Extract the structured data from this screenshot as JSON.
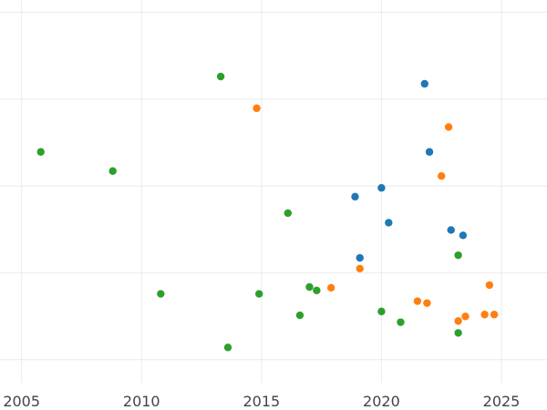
{
  "chart_data": {
    "type": "scatter",
    "title": "",
    "xlabel": "",
    "ylabel": "",
    "xlim": [
      2004.1,
      2026.9
    ],
    "ylim": [
      0,
      1
    ],
    "x_ticks": [
      2005,
      2010,
      2015,
      2020,
      2025
    ],
    "x_tick_labels": [
      "2005",
      "2010",
      "2015",
      "2020",
      "2025"
    ],
    "y_ticks": [
      0.06,
      0.287,
      0.514,
      0.741,
      0.968
    ],
    "y_tick_labels": [
      "",
      "",
      "",
      "",
      ""
    ],
    "grid": true,
    "legend": "none",
    "series": [
      {
        "color": "#1f77b4",
        "points": [
          {
            "x": 2018.9,
            "y": 0.486
          },
          {
            "x": 2019.1,
            "y": 0.326
          },
          {
            "x": 2020.0,
            "y": 0.509
          },
          {
            "x": 2020.3,
            "y": 0.418
          },
          {
            "x": 2021.8,
            "y": 0.781
          },
          {
            "x": 2022.0,
            "y": 0.603
          },
          {
            "x": 2022.9,
            "y": 0.399
          },
          {
            "x": 2023.4,
            "y": 0.385
          }
        ]
      },
      {
        "color": "#ff7f0e",
        "points": [
          {
            "x": 2014.8,
            "y": 0.717
          },
          {
            "x": 2017.9,
            "y": 0.248
          },
          {
            "x": 2019.1,
            "y": 0.298
          },
          {
            "x": 2021.5,
            "y": 0.213
          },
          {
            "x": 2021.9,
            "y": 0.208
          },
          {
            "x": 2022.5,
            "y": 0.54
          },
          {
            "x": 2022.8,
            "y": 0.668
          },
          {
            "x": 2023.2,
            "y": 0.161
          },
          {
            "x": 2023.5,
            "y": 0.173
          },
          {
            "x": 2024.3,
            "y": 0.178
          },
          {
            "x": 2024.5,
            "y": 0.255
          },
          {
            "x": 2024.7,
            "y": 0.178
          }
        ]
      },
      {
        "color": "#2ca02c",
        "points": [
          {
            "x": 2005.8,
            "y": 0.603
          },
          {
            "x": 2008.8,
            "y": 0.553
          },
          {
            "x": 2010.8,
            "y": 0.232
          },
          {
            "x": 2013.3,
            "y": 0.8
          },
          {
            "x": 2013.6,
            "y": 0.092
          },
          {
            "x": 2014.9,
            "y": 0.232
          },
          {
            "x": 2016.1,
            "y": 0.443
          },
          {
            "x": 2016.6,
            "y": 0.176
          },
          {
            "x": 2017.0,
            "y": 0.25
          },
          {
            "x": 2017.3,
            "y": 0.241
          },
          {
            "x": 2020.0,
            "y": 0.186
          },
          {
            "x": 2020.8,
            "y": 0.158
          },
          {
            "x": 2023.2,
            "y": 0.333
          },
          {
            "x": 2023.2,
            "y": 0.13
          }
        ]
      }
    ]
  }
}
